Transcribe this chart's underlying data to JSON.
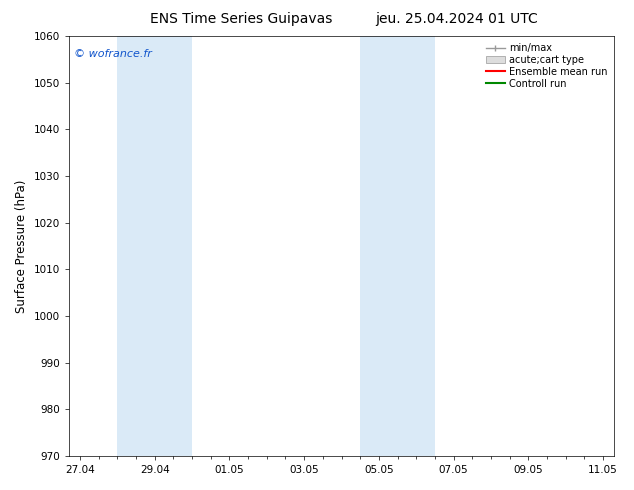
{
  "title_left": "ENS Time Series Guipavas",
  "title_right": "jeu. 25.04.2024 01 UTC",
  "ylabel": "Surface Pressure (hPa)",
  "ylim": [
    970,
    1060
  ],
  "yticks": [
    970,
    980,
    990,
    1000,
    1010,
    1020,
    1030,
    1040,
    1050,
    1060
  ],
  "xtick_labels": [
    "27.04",
    "29.04",
    "01.05",
    "03.05",
    "05.05",
    "07.05",
    "09.05",
    "11.05"
  ],
  "xtick_positions": [
    0,
    2,
    4,
    6,
    8,
    10,
    12,
    14
  ],
  "xlim": [
    -0.3,
    14.3
  ],
  "shaded_bands": [
    {
      "x_start": 1,
      "x_end": 3
    },
    {
      "x_start": 7.5,
      "x_end": 9.5
    }
  ],
  "shaded_color": "#daeaf7",
  "watermark_text": "© wofrance.fr",
  "watermark_color": "#1155cc",
  "legend_entries": [
    {
      "label": "min/max",
      "color": "#aaaaaa",
      "type": "minmax"
    },
    {
      "label": "acute;cart type",
      "color": "#cccccc",
      "type": "box"
    },
    {
      "label": "Ensemble mean run",
      "color": "#ff0000",
      "type": "line"
    },
    {
      "label": "Controll run",
      "color": "#008800",
      "type": "line"
    }
  ],
  "background_color": "#ffffff",
  "plot_bg_color": "#ffffff",
  "title_fontsize": 10,
  "tick_label_fontsize": 7.5,
  "ylabel_fontsize": 8.5,
  "watermark_fontsize": 8
}
